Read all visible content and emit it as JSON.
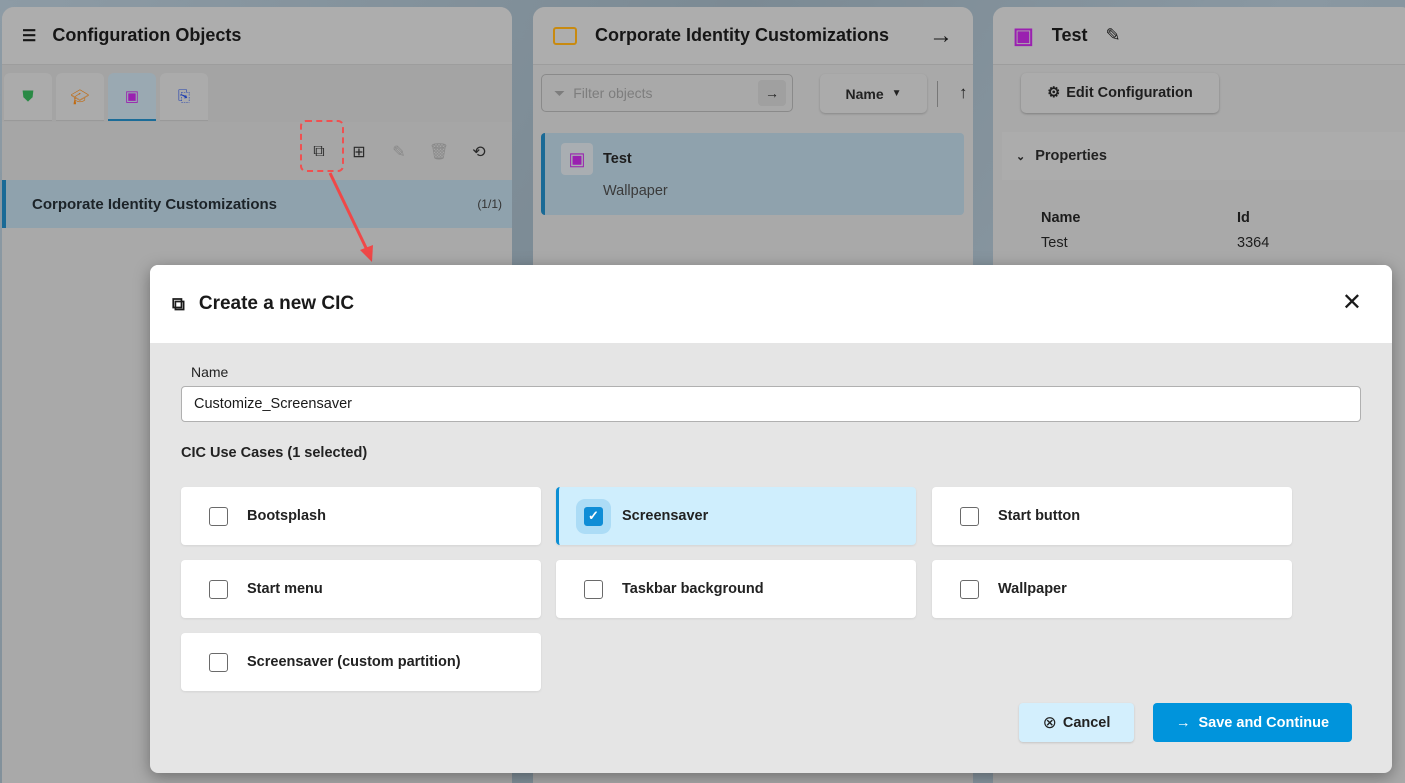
{
  "left_panel": {
    "title": "Configuration Objects",
    "tabs": [
      {
        "icon": "shield-icon",
        "color": "#2fa84f"
      },
      {
        "icon": "graduation-shield-icon",
        "color": "#e07a10"
      },
      {
        "icon": "cic-chip-icon",
        "color": "#a020c0",
        "active": true
      },
      {
        "icon": "document-link-icon",
        "color": "#2040c0"
      }
    ],
    "toolbar": [
      "add-cic-icon",
      "add-folder-icon",
      "edit-icon",
      "delete-icon",
      "refresh-icon"
    ],
    "selected_item": {
      "label": "Corporate Identity Customizations",
      "count": "(1/1)"
    }
  },
  "middle_panel": {
    "title": "Corporate Identity Customizations",
    "filter_placeholder": "Filter objects",
    "sort_label": "Name",
    "object": {
      "name": "Test",
      "type": "Wallpaper"
    }
  },
  "right_panel": {
    "title": "Test",
    "edit_button": "Edit Configuration",
    "section": "Properties",
    "columns": [
      {
        "header": "Name",
        "value": "Test"
      },
      {
        "header": "Id",
        "value": "3364"
      }
    ]
  },
  "dialog": {
    "title": "Create a new CIC",
    "name_label": "Name",
    "name_value": "Customize_Screensaver",
    "use_cases_label": "CIC Use Cases (1 selected)",
    "use_cases": [
      {
        "label": "Bootsplash",
        "checked": false
      },
      {
        "label": "Screensaver",
        "checked": true
      },
      {
        "label": "Start button",
        "checked": false
      },
      {
        "label": "Start menu",
        "checked": false
      },
      {
        "label": "Taskbar background",
        "checked": false
      },
      {
        "label": "Wallpaper",
        "checked": false
      },
      {
        "label": "Screensaver (custom partition)",
        "checked": false
      }
    ],
    "cancel_label": "Cancel",
    "save_label": "Save and Continue",
    "accent": "#0094dc"
  }
}
